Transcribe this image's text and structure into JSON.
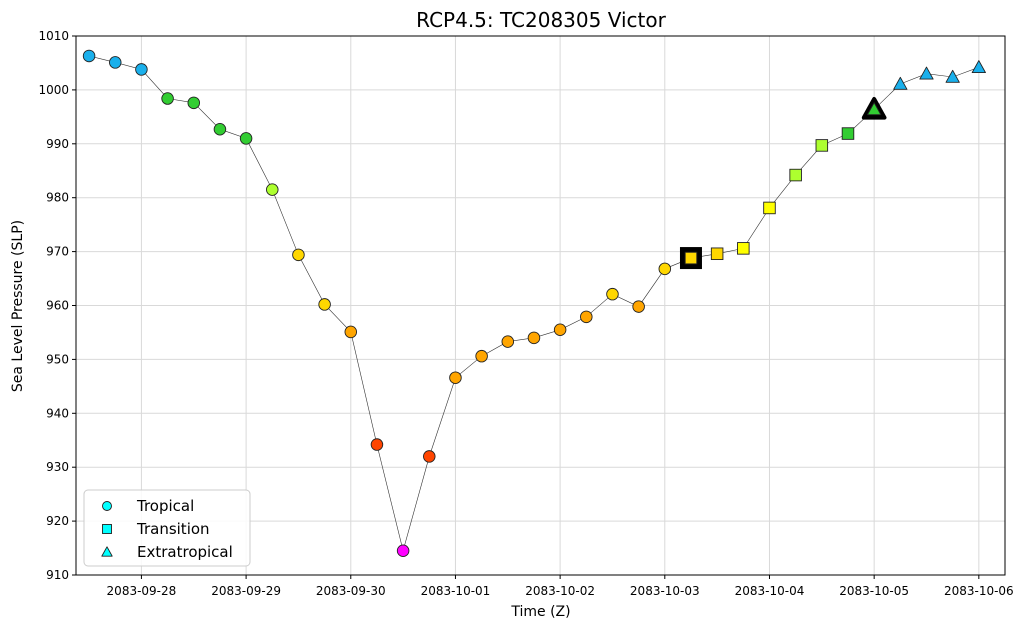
{
  "chart_data": {
    "type": "scatter",
    "title": "RCP4.5: TC208305 Victor",
    "xlabel": "Time (Z)",
    "ylabel": "Sea Level Pressure (SLP)",
    "ylim": [
      910,
      1010
    ],
    "y_ticks": [
      910,
      920,
      930,
      940,
      950,
      960,
      970,
      980,
      990,
      1000,
      1010
    ],
    "xlim": [
      "2083-09-27 09:00",
      "2083-10-06 06:00"
    ],
    "x_ticks": [
      "2083-09-28",
      "2083-09-29",
      "2083-09-30",
      "2083-10-01",
      "2083-10-02",
      "2083-10-03",
      "2083-10-04",
      "2083-10-05",
      "2083-10-06"
    ],
    "grid": true,
    "legend_position": "lower-left",
    "legend": [
      {
        "label": "Tropical",
        "marker": "circle"
      },
      {
        "label": "Transition",
        "marker": "square"
      },
      {
        "label": "Extratropical",
        "marker": "triangle"
      }
    ],
    "points": [
      {
        "t": "2083-09-27 12:00",
        "slp": 1006.3,
        "phase": "Tropical",
        "color": "#1ab0ec"
      },
      {
        "t": "2083-09-27 18:00",
        "slp": 1005.1,
        "phase": "Tropical",
        "color": "#1ab0ec"
      },
      {
        "t": "2083-09-28 00:00",
        "slp": 1003.8,
        "phase": "Tropical",
        "color": "#1ab0ec"
      },
      {
        "t": "2083-09-28 06:00",
        "slp": 998.4,
        "phase": "Tropical",
        "color": "#32cd32"
      },
      {
        "t": "2083-09-28 12:00",
        "slp": 997.6,
        "phase": "Tropical",
        "color": "#32cd32"
      },
      {
        "t": "2083-09-28 18:00",
        "slp": 992.7,
        "phase": "Tropical",
        "color": "#32cd32"
      },
      {
        "t": "2083-09-29 00:00",
        "slp": 991.0,
        "phase": "Tropical",
        "color": "#32cd32"
      },
      {
        "t": "2083-09-29 06:00",
        "slp": 981.5,
        "phase": "Tropical",
        "color": "#adff2f"
      },
      {
        "t": "2083-09-29 12:00",
        "slp": 969.4,
        "phase": "Tropical",
        "color": "#ffd700"
      },
      {
        "t": "2083-09-29 18:00",
        "slp": 960.2,
        "phase": "Tropical",
        "color": "#ffd700"
      },
      {
        "t": "2083-09-30 00:00",
        "slp": 955.1,
        "phase": "Tropical",
        "color": "#ffa500"
      },
      {
        "t": "2083-09-30 06:00",
        "slp": 934.2,
        "phase": "Tropical",
        "color": "#ff4500"
      },
      {
        "t": "2083-09-30 12:00",
        "slp": 914.5,
        "phase": "Tropical",
        "color": "#ff00ff"
      },
      {
        "t": "2083-09-30 18:00",
        "slp": 932.0,
        "phase": "Tropical",
        "color": "#ff4500"
      },
      {
        "t": "2083-10-01 00:00",
        "slp": 946.6,
        "phase": "Tropical",
        "color": "#ffa500"
      },
      {
        "t": "2083-10-01 06:00",
        "slp": 950.6,
        "phase": "Tropical",
        "color": "#ffa500"
      },
      {
        "t": "2083-10-01 12:00",
        "slp": 953.3,
        "phase": "Tropical",
        "color": "#ffa500"
      },
      {
        "t": "2083-10-01 18:00",
        "slp": 954.0,
        "phase": "Tropical",
        "color": "#ffa500"
      },
      {
        "t": "2083-10-02 00:00",
        "slp": 955.5,
        "phase": "Tropical",
        "color": "#ffa500"
      },
      {
        "t": "2083-10-02 06:00",
        "slp": 957.9,
        "phase": "Tropical",
        "color": "#ffa500"
      },
      {
        "t": "2083-10-02 12:00",
        "slp": 962.1,
        "phase": "Tropical",
        "color": "#ffd700"
      },
      {
        "t": "2083-10-02 18:00",
        "slp": 959.8,
        "phase": "Tropical",
        "color": "#ffa500"
      },
      {
        "t": "2083-10-03 00:00",
        "slp": 966.8,
        "phase": "Tropical",
        "color": "#ffd700"
      },
      {
        "t": "2083-10-03 06:00",
        "slp": 968.8,
        "phase": "Transition",
        "color": "#ffd700",
        "highlight": true
      },
      {
        "t": "2083-10-03 12:00",
        "slp": 969.6,
        "phase": "Transition",
        "color": "#ffd700"
      },
      {
        "t": "2083-10-03 18:00",
        "slp": 970.6,
        "phase": "Transition",
        "color": "#ffff00"
      },
      {
        "t": "2083-10-04 00:00",
        "slp": 978.1,
        "phase": "Transition",
        "color": "#ffff00"
      },
      {
        "t": "2083-10-04 06:00",
        "slp": 984.2,
        "phase": "Transition",
        "color": "#adff2f"
      },
      {
        "t": "2083-10-04 12:00",
        "slp": 989.7,
        "phase": "Transition",
        "color": "#adff2f"
      },
      {
        "t": "2083-10-04 18:00",
        "slp": 991.9,
        "phase": "Transition",
        "color": "#32cd32"
      },
      {
        "t": "2083-10-05 00:00",
        "slp": 996.4,
        "phase": "Extratropical",
        "color": "#32cd32",
        "highlight": true
      },
      {
        "t": "2083-10-05 06:00",
        "slp": 1001.1,
        "phase": "Extratropical",
        "color": "#1ab0ec"
      },
      {
        "t": "2083-10-05 12:00",
        "slp": 1003.0,
        "phase": "Extratropical",
        "color": "#1ab0ec"
      },
      {
        "t": "2083-10-05 18:00",
        "slp": 1002.4,
        "phase": "Extratropical",
        "color": "#1ab0ec"
      },
      {
        "t": "2083-10-06 00:00",
        "slp": 1004.2,
        "phase": "Extratropical",
        "color": "#1ab0ec"
      }
    ]
  }
}
